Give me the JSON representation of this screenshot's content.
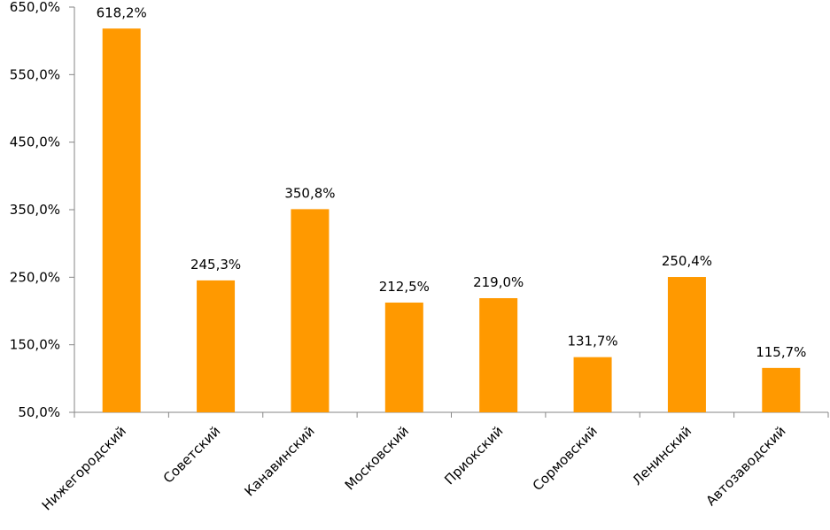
{
  "chart_data": {
    "type": "bar",
    "categories": [
      "Нижегородский",
      "Советский",
      "Канавинский",
      "Московский",
      "Приокский",
      "Сормовский",
      "Ленинский",
      "Автозаводский"
    ],
    "values": [
      618.2,
      245.3,
      350.8,
      212.5,
      219.0,
      131.7,
      250.4,
      115.7
    ],
    "data_labels": [
      "618,2%",
      "245,3%",
      "350,8%",
      "212,5%",
      "219,0%",
      "131,7%",
      "250,4%",
      "115,7%"
    ],
    "y_ticks": [
      50,
      150,
      250,
      350,
      450,
      550,
      650
    ],
    "y_tick_labels": [
      "50,0%",
      "150,0%",
      "250,0%",
      "350,0%",
      "450,0%",
      "550,0%",
      "650,0%"
    ],
    "ylim": [
      50,
      650
    ],
    "title": "",
    "xlabel": "",
    "ylabel": "",
    "grid": false,
    "legend": "none",
    "colors": {
      "bar": "#FF9900",
      "axis": "#868686"
    }
  }
}
